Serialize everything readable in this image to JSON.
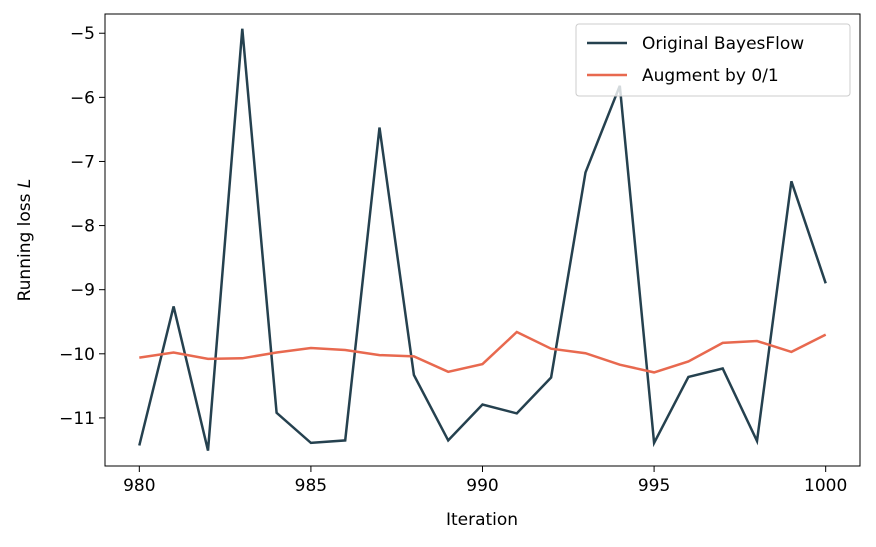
{
  "chart_data": {
    "type": "line",
    "title": "",
    "xlabel": "Iteration",
    "ylabel": "Running loss",
    "ylabel_italic_symbol": "L",
    "xlim": [
      979,
      1001
    ],
    "ylim": [
      -11.75,
      -4.7
    ],
    "xticks": [
      980,
      985,
      990,
      995,
      1000
    ],
    "yticks": [
      -5,
      -6,
      -7,
      -8,
      -9,
      -10,
      -11
    ],
    "ytick_labels": [
      "−5",
      "−6",
      "−7",
      "−8",
      "−9",
      "−10",
      "−11"
    ],
    "grid": false,
    "legend_position": "top-right",
    "x": [
      980,
      981,
      982,
      983,
      984,
      985,
      986,
      987,
      988,
      989,
      990,
      991,
      992,
      993,
      994,
      995,
      996,
      997,
      998,
      999,
      1000
    ],
    "series": [
      {
        "name": "Original BayesFlow",
        "color": "#25414f",
        "values": [
          -11.43,
          -9.26,
          -11.51,
          -4.93,
          -10.92,
          -11.39,
          -11.35,
          -6.47,
          -10.33,
          -11.35,
          -10.79,
          -10.93,
          -10.37,
          -7.17,
          -5.82,
          -11.39,
          -10.36,
          -10.23,
          -11.36,
          -7.31,
          -8.9
        ]
      },
      {
        "name": "Augment by 0/1",
        "color": "#e8694f",
        "values": [
          -10.06,
          -9.98,
          -10.08,
          -10.07,
          -9.98,
          -9.91,
          -9.94,
          -10.02,
          -10.04,
          -10.28,
          -10.16,
          -9.66,
          -9.92,
          -9.99,
          -10.17,
          -10.29,
          -10.12,
          -9.83,
          -9.8,
          -9.97,
          -9.7
        ]
      }
    ]
  }
}
